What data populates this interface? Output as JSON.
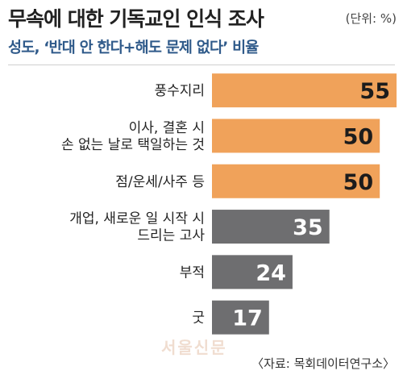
{
  "header": {
    "title": "무속에 대한 기독교인 인식 조사",
    "unit": "(단위: %)",
    "subtitle": "성도, ‘반대 안 한다+해도 문제 없다’ 비율"
  },
  "footer": {
    "watermark": "서울신문",
    "source": "〈자료: 목회데이터연구소〉"
  },
  "colors": {
    "highlight": "#f0a25a",
    "base": "#6e6e70",
    "subtitle": "#2f5a8a"
  },
  "chart_data": {
    "type": "bar",
    "orientation": "horizontal",
    "categories": [
      [
        "풍수지리"
      ],
      [
        "이사, 결혼 시",
        "손 없는 날로 택일하는 것"
      ],
      [
        "점/운세/사주 등"
      ],
      [
        "개업, 새로운 일 시작 시",
        "드리는 고사"
      ],
      [
        "부적"
      ],
      [
        "굿"
      ]
    ],
    "values": [
      55,
      50,
      50,
      35,
      24,
      17
    ],
    "highlighted": [
      true,
      true,
      true,
      false,
      false,
      false
    ],
    "title": "무속에 대한 기독교인 인식 조사",
    "subtitle": "성도, ‘반대 안 한다+해도 문제 없다’ 비율",
    "unit": "%",
    "xlim": [
      0,
      55
    ],
    "grid": false,
    "legend": "none"
  }
}
